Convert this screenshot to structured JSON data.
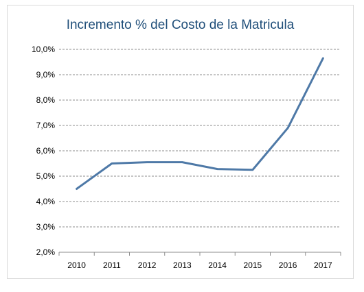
{
  "chart_data": {
    "type": "line",
    "title": "Incremento % del Costo de la Matricula",
    "xlabel": "",
    "ylabel": "",
    "categories": [
      "2010",
      "2011",
      "2012",
      "2013",
      "2014",
      "2015",
      "2016",
      "2017"
    ],
    "values": [
      4.5,
      5.5,
      5.55,
      5.55,
      5.28,
      5.25,
      6.9,
      9.65
    ],
    "ylim": [
      2.0,
      10.0
    ],
    "yticks": [
      "2,0%",
      "3,0%",
      "4,0%",
      "5,0%",
      "6,0%",
      "7,0%",
      "8,0%",
      "9,0%",
      "10,0%"
    ],
    "grid": true,
    "grid_style": "dashed",
    "line_color": "#4e79a7"
  }
}
